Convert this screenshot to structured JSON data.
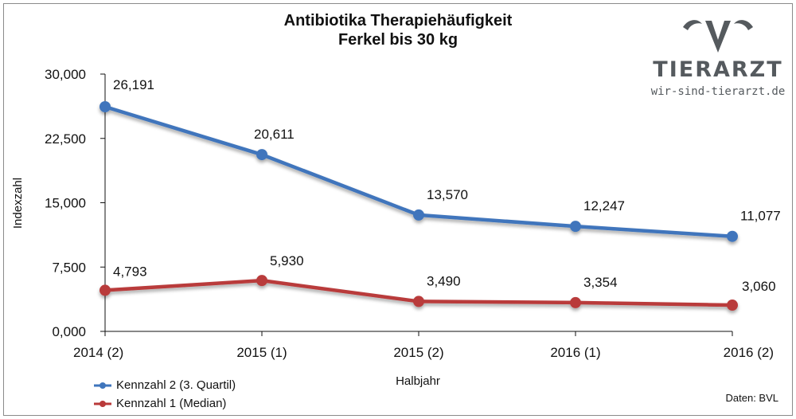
{
  "chart_data": {
    "type": "line",
    "title": "Antibiotika Therapiehäufigkeit",
    "subtitle": "Ferkel bis 30 kg",
    "xlabel": "Halbjahr",
    "ylabel": "Indexzahl",
    "categories": [
      "2014 (2)",
      "2015 (1)",
      "2015 (2)",
      "2016 (1)",
      "2016 (2)"
    ],
    "ylim": [
      0,
      30000
    ],
    "yticks": [
      0,
      7500,
      15000,
      22500,
      30000
    ],
    "ytick_labels": [
      "0,000",
      "7,500",
      "15,000",
      "22,500",
      "30,000"
    ],
    "grid": false,
    "legend_position": "bottom-left",
    "series": [
      {
        "name": "Kennzahl 2 (3. Quartil)",
        "color": "#3f75bc",
        "values": [
          26191,
          20611,
          13570,
          12247,
          11077
        ],
        "labels": [
          "26,191",
          "20,611",
          "13,570",
          "12,247",
          "11,077"
        ]
      },
      {
        "name": "Kennzahl 1 (Median)",
        "color": "#b93a3a",
        "values": [
          4793,
          5930,
          3490,
          3354,
          3060
        ],
        "labels": [
          "4,793",
          "5,930",
          "3,490",
          "3,354",
          "3,060"
        ]
      }
    ]
  },
  "logo": {
    "brand": "TIERARZT",
    "url": "wir-sind-tierarzt.de",
    "icon": "v-horns-icon",
    "color": "#555a5e"
  },
  "source": "Daten: BVL"
}
